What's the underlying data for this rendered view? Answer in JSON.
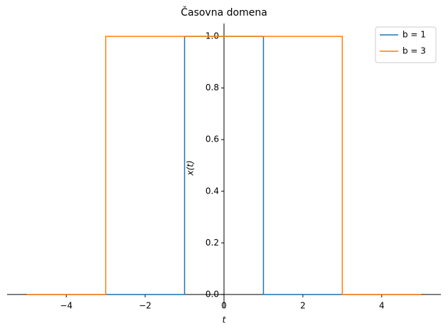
{
  "chart_data": {
    "type": "line",
    "title": "Časovna domena",
    "x_label": "t",
    "y_label": "x(t)",
    "series": [
      {
        "name": "b = 1",
        "color": "#1f77b4",
        "x": [
          -5,
          -1,
          -1,
          1,
          1,
          5
        ],
        "values": [
          0,
          0,
          1,
          1,
          0,
          0
        ]
      },
      {
        "name": "b = 3",
        "color": "#ff7f0e",
        "x": [
          -5,
          -3,
          -3,
          3,
          3,
          5
        ],
        "values": [
          0,
          0,
          1,
          1,
          0,
          0
        ]
      }
    ],
    "xlim": [
      -5.5,
      5.5
    ],
    "ylim": [
      -0.05,
      1.05
    ],
    "xticks": [
      {
        "value": -4,
        "label": "−4"
      },
      {
        "value": -2,
        "label": "−2"
      },
      0,
      2,
      4
    ],
    "yticks": [
      {
        "value": 0,
        "label": "0.0"
      },
      0.2,
      0.4,
      0.6,
      0.8,
      {
        "value": 1,
        "label": "1.0"
      }
    ],
    "legend": "upper right"
  }
}
